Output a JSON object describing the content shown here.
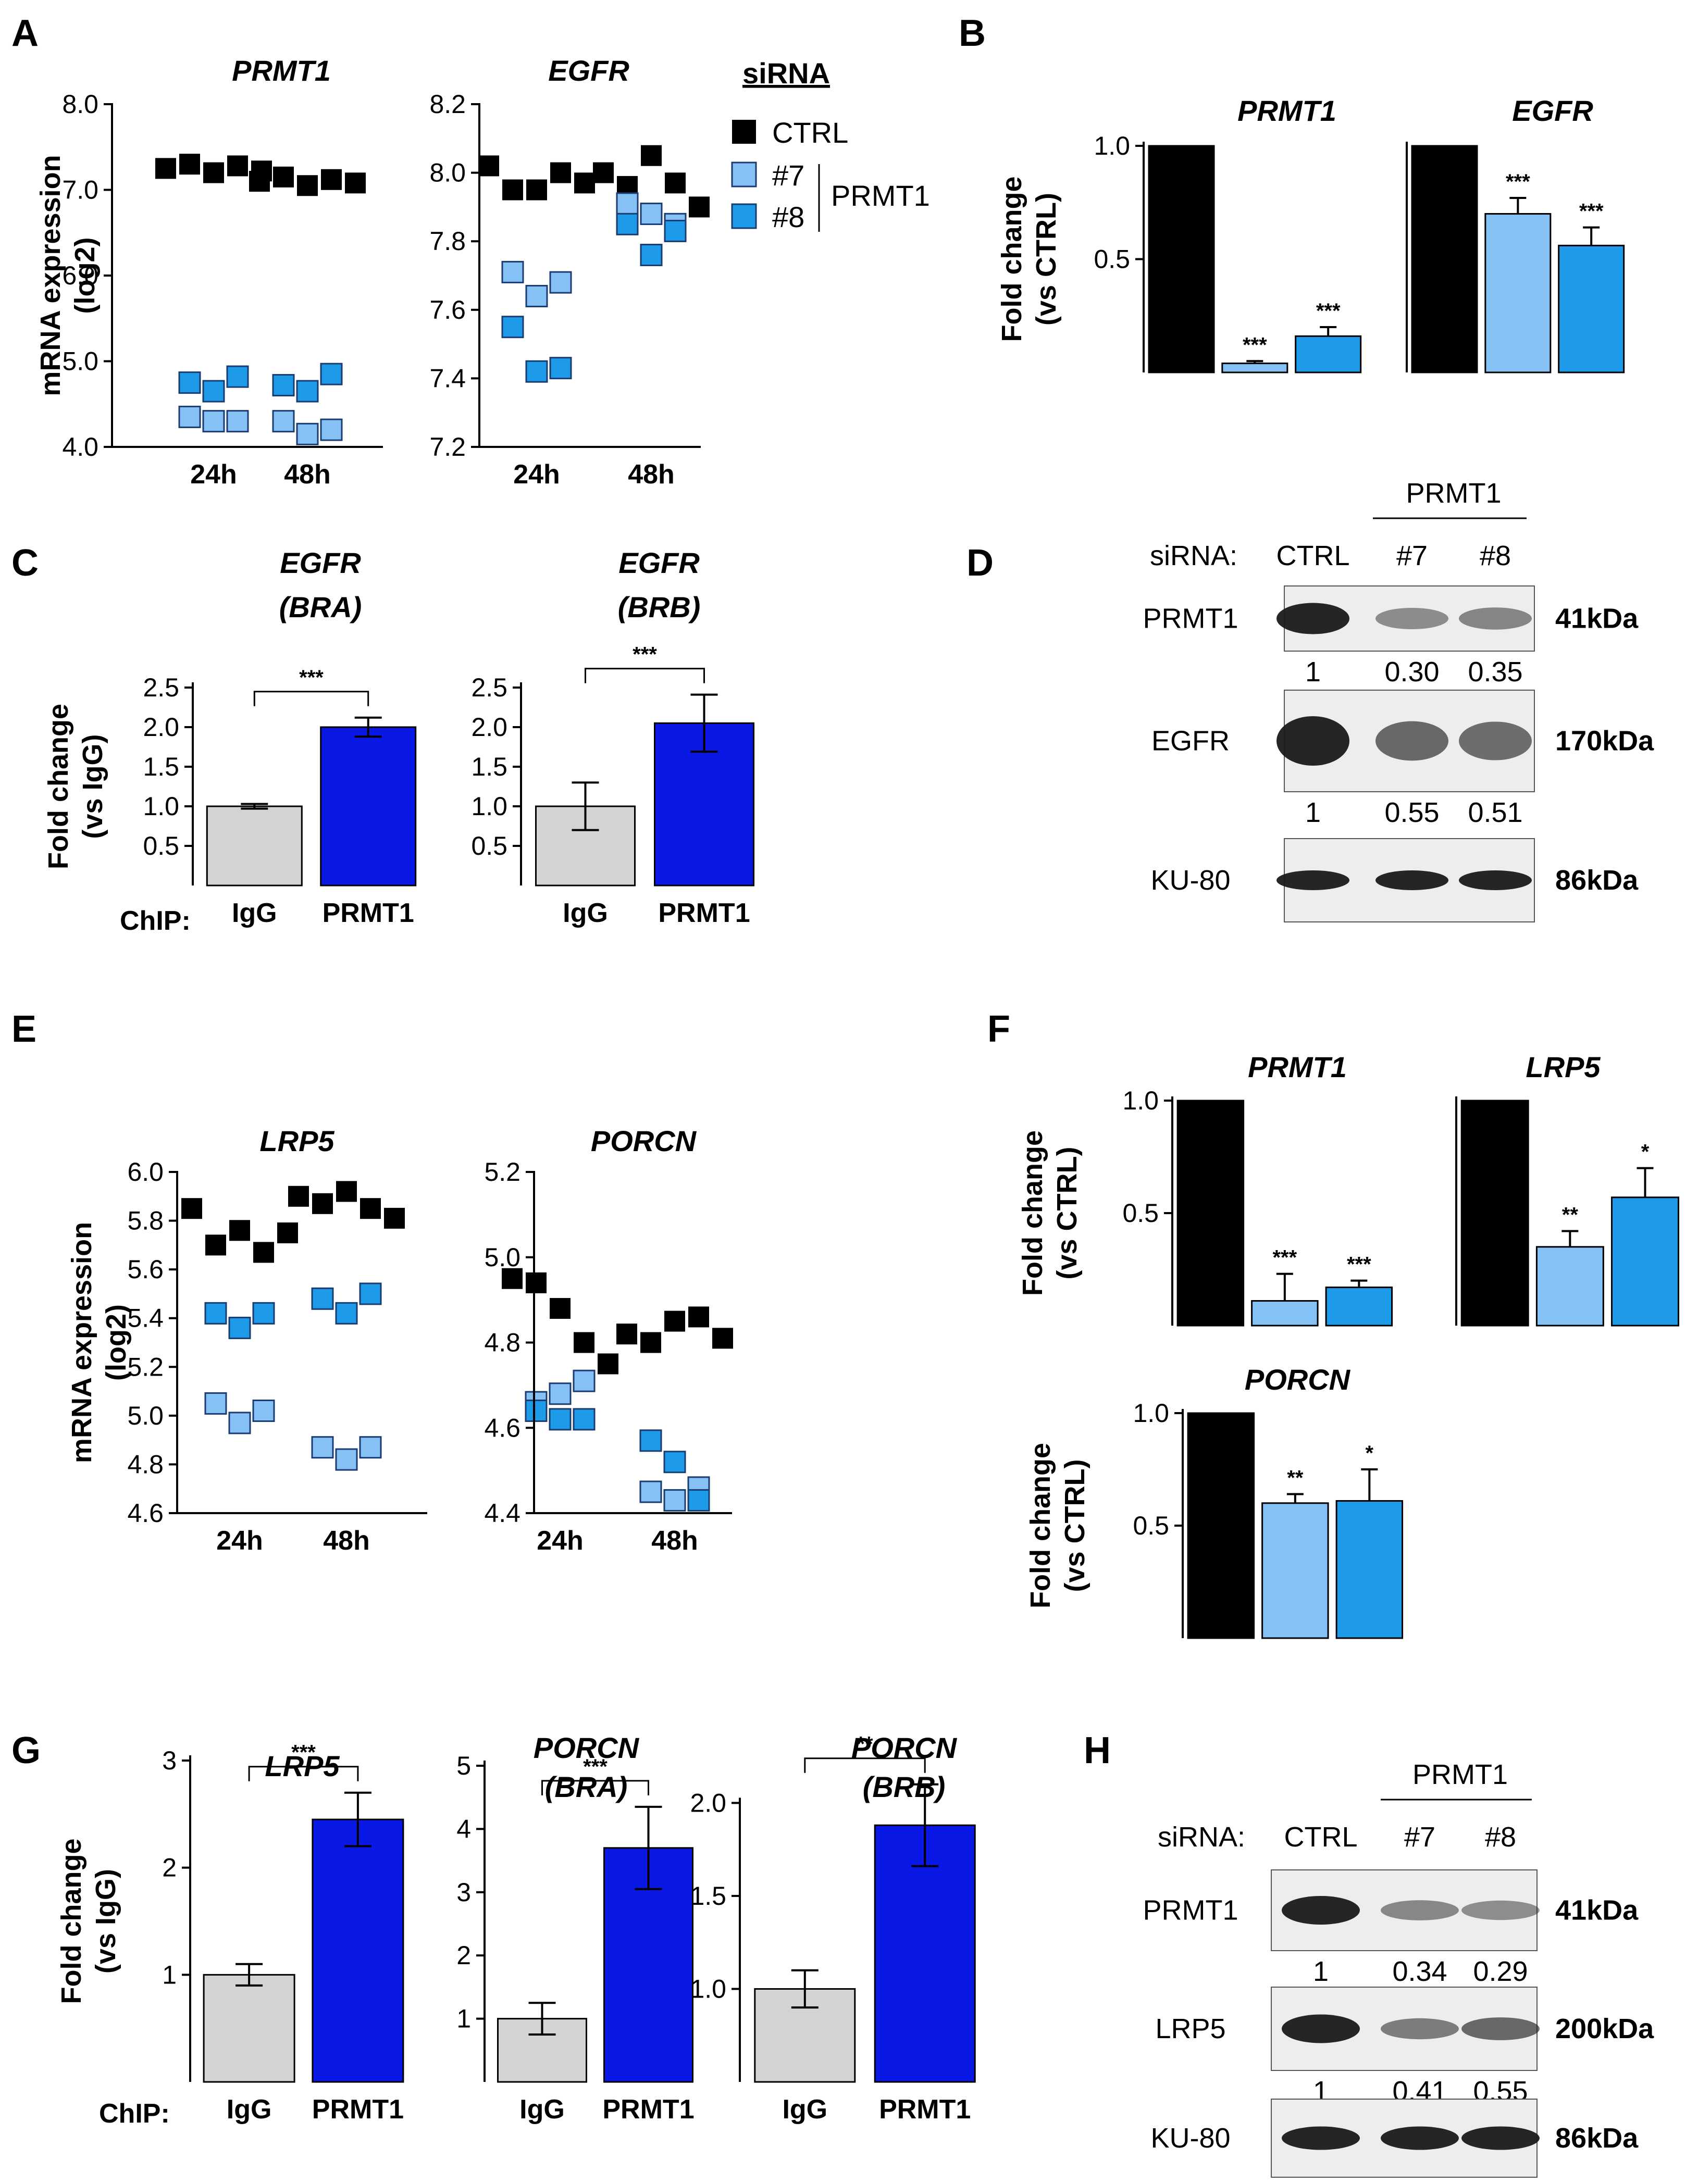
{
  "panels": {
    "A": "A",
    "B": "B",
    "C": "C",
    "D": "D",
    "E": "E",
    "F": "F",
    "G": "G",
    "H": "H"
  },
  "colors": {
    "ctrl": "#000000",
    "si7": "#85c1f5",
    "si8": "#1e9be8",
    "igg": "#d3d3d3",
    "prmt1_chip": "#0a18e6"
  },
  "legend": {
    "title": "siRNA",
    "ctrl": "CTRL",
    "si7": "#7",
    "si8": "#8",
    "group": "PRMT1"
  },
  "chart_data": [
    {
      "id": "A1",
      "type": "scatter",
      "title": "PRMT1",
      "ylabel": "mRNA expression (log2)",
      "ylim": [
        4.0,
        8.0
      ],
      "yticks": [
        {
          "v": 8.0,
          "l": "8.0"
        },
        {
          "v": 7.0,
          "l": "7.0"
        },
        {
          "v": 6.0,
          "l": "6.0"
        },
        {
          "v": 5.0,
          "l": "5.0"
        },
        {
          "v": 4.0,
          "l": "4.0"
        }
      ],
      "categories": [
        "24h",
        "48h"
      ],
      "series": [
        {
          "name": "CTRL",
          "color": "ctrl",
          "points": [
            [
              0,
              7.25
            ],
            [
              0,
              7.3
            ],
            [
              0,
              7.2
            ],
            [
              0,
              7.28
            ],
            [
              0,
              7.22
            ],
            [
              1,
              7.1
            ],
            [
              1,
              7.15
            ],
            [
              1,
              7.05
            ],
            [
              1,
              7.12
            ],
            [
              1,
              7.08
            ]
          ]
        },
        {
          "name": "#7",
          "color": "si7",
          "points": [
            [
              0,
              4.35
            ],
            [
              0,
              4.3
            ],
            [
              0,
              4.3
            ],
            [
              1,
              4.3
            ],
            [
              1,
              4.15
            ],
            [
              1,
              4.2
            ]
          ]
        },
        {
          "name": "#8",
          "color": "si8",
          "points": [
            [
              0,
              4.75
            ],
            [
              0,
              4.65
            ],
            [
              0,
              4.82
            ],
            [
              1,
              4.72
            ],
            [
              1,
              4.65
            ],
            [
              1,
              4.85
            ]
          ]
        }
      ]
    },
    {
      "id": "A2",
      "type": "scatter",
      "title": "EGFR",
      "ylim": [
        7.2,
        8.2
      ],
      "yticks": [
        {
          "v": 8.2,
          "l": "8.2"
        },
        {
          "v": 8.0,
          "l": "8.0"
        },
        {
          "v": 7.8,
          "l": "7.8"
        },
        {
          "v": 7.6,
          "l": "7.6"
        },
        {
          "v": 7.4,
          "l": "7.4"
        },
        {
          "v": 7.2,
          "l": "7.2"
        }
      ],
      "categories": [
        "24h",
        "48h"
      ],
      "series": [
        {
          "name": "CTRL",
          "color": "ctrl",
          "points": [
            [
              0,
              8.02
            ],
            [
              0,
              7.95
            ],
            [
              0,
              7.95
            ],
            [
              0,
              8.0
            ],
            [
              0,
              7.97
            ],
            [
              1,
              8.0
            ],
            [
              1,
              7.96
            ],
            [
              1,
              8.05
            ],
            [
              1,
              7.97
            ],
            [
              1,
              7.9
            ]
          ]
        },
        {
          "name": "#7",
          "color": "si7",
          "points": [
            [
              0,
              7.71
            ],
            [
              0,
              7.64
            ],
            [
              0,
              7.68
            ],
            [
              1,
              7.91
            ],
            [
              1,
              7.88
            ],
            [
              1,
              7.85
            ]
          ]
        },
        {
          "name": "#8",
          "color": "si8",
          "points": [
            [
              0,
              7.55
            ],
            [
              0,
              7.42
            ],
            [
              0,
              7.43
            ],
            [
              1,
              7.85
            ],
            [
              1,
              7.76
            ],
            [
              1,
              7.83
            ]
          ]
        }
      ]
    },
    {
      "id": "B1",
      "type": "bar",
      "title": "PRMT1",
      "ylabel": "Fold change (vs CTRL)",
      "ylim": [
        0,
        1.0
      ],
      "yticks": [
        {
          "v": 1.0,
          "l": "1.0"
        },
        {
          "v": 0.5,
          "l": "0.5"
        }
      ],
      "categories": [
        "CTRL",
        "#7",
        "#8"
      ],
      "values": [
        1.0,
        0.04,
        0.16
      ],
      "errors": [
        0,
        0.01,
        0.04
      ],
      "sig": [
        "",
        "***",
        "***"
      ]
    },
    {
      "id": "B2",
      "type": "bar",
      "title": "EGFR",
      "ylim": [
        0,
        1.0
      ],
      "yticks": [],
      "categories": [
        "CTRL",
        "#7",
        "#8"
      ],
      "values": [
        1.0,
        0.7,
        0.56
      ],
      "errors": [
        0,
        0.07,
        0.08
      ],
      "sig": [
        "",
        "***",
        "***"
      ]
    },
    {
      "id": "C1",
      "type": "bar",
      "title": "EGFR",
      "subtitle": "(BRA)",
      "ylabel": "Fold change (vs IgG)",
      "ylim": [
        0,
        2.5
      ],
      "yticks": [
        {
          "v": 2.5,
          "l": "2.5"
        },
        {
          "v": 2.0,
          "l": "2.0"
        },
        {
          "v": 1.5,
          "l": "1.5"
        },
        {
          "v": 1.0,
          "l": "1.0"
        },
        {
          "v": 0.5,
          "l": "0.5"
        }
      ],
      "categories": [
        "IgG",
        "PRMT1"
      ],
      "values": [
        1.0,
        2.0
      ],
      "errors": [
        0.03,
        0.12
      ],
      "bracket": "***"
    },
    {
      "id": "C2",
      "type": "bar",
      "title": "EGFR",
      "subtitle": "(BRB)",
      "ylim": [
        0,
        2.5
      ],
      "yticks": [
        {
          "v": 2.5,
          "l": "2.5"
        },
        {
          "v": 2.0,
          "l": "2.0"
        },
        {
          "v": 1.5,
          "l": "1.5"
        },
        {
          "v": 1.0,
          "l": "1.0"
        },
        {
          "v": 0.5,
          "l": "0.5"
        }
      ],
      "categories": [
        "IgG",
        "PRMT1"
      ],
      "values": [
        1.0,
        2.05
      ],
      "errors": [
        0.3,
        0.36
      ],
      "bracket": "***"
    },
    {
      "id": "E1",
      "type": "scatter",
      "title": "LRP5",
      "ylabel": "mRNA expression (log2)",
      "ylim": [
        4.6,
        6.0
      ],
      "yticks": [
        {
          "v": 6.0,
          "l": "6.0"
        },
        {
          "v": 5.8,
          "l": "5.8"
        },
        {
          "v": 5.6,
          "l": "5.6"
        },
        {
          "v": 5.4,
          "l": "5.4"
        },
        {
          "v": 5.2,
          "l": "5.2"
        },
        {
          "v": 5.0,
          "l": "5.0"
        },
        {
          "v": 4.8,
          "l": "4.8"
        },
        {
          "v": 4.6,
          "l": "4.6"
        }
      ],
      "categories": [
        "24h",
        "48h"
      ],
      "series": [
        {
          "name": "CTRL",
          "color": "ctrl",
          "points": [
            [
              0,
              5.85
            ],
            [
              0,
              5.7
            ],
            [
              0,
              5.76
            ],
            [
              0,
              5.67
            ],
            [
              0,
              5.75
            ],
            [
              1,
              5.9
            ],
            [
              1,
              5.87
            ],
            [
              1,
              5.92
            ],
            [
              1,
              5.85
            ],
            [
              1,
              5.81
            ]
          ]
        },
        {
          "name": "#7",
          "color": "si7",
          "points": [
            [
              0,
              5.05
            ],
            [
              0,
              4.97
            ],
            [
              0,
              5.02
            ],
            [
              1,
              4.87
            ],
            [
              1,
              4.82
            ],
            [
              1,
              4.87
            ]
          ]
        },
        {
          "name": "#8",
          "color": "si8",
          "points": [
            [
              0,
              5.42
            ],
            [
              0,
              5.36
            ],
            [
              0,
              5.42
            ],
            [
              1,
              5.48
            ],
            [
              1,
              5.42
            ],
            [
              1,
              5.5
            ]
          ]
        }
      ]
    },
    {
      "id": "E2",
      "type": "scatter",
      "title": "PORCN",
      "ylim": [
        4.4,
        5.2
      ],
      "yticks": [
        {
          "v": 5.2,
          "l": "5.2"
        },
        {
          "v": 5.0,
          "l": "5.0"
        },
        {
          "v": 4.8,
          "l": "4.8"
        },
        {
          "v": 4.6,
          "l": "4.6"
        },
        {
          "v": 4.4,
          "l": "4.4"
        }
      ],
      "categories": [
        "24h",
        "48h"
      ],
      "series": [
        {
          "name": "CTRL",
          "color": "ctrl",
          "points": [
            [
              0,
              4.95
            ],
            [
              0,
              4.94
            ],
            [
              0,
              4.88
            ],
            [
              0,
              4.8
            ],
            [
              0,
              4.75
            ],
            [
              1,
              4.82
            ],
            [
              1,
              4.8
            ],
            [
              1,
              4.85
            ],
            [
              1,
              4.86
            ],
            [
              1,
              4.81
            ]
          ]
        },
        {
          "name": "#7",
          "color": "si7",
          "points": [
            [
              0,
              4.66
            ],
            [
              0,
              4.68
            ],
            [
              0,
              4.71
            ],
            [
              1,
              4.45
            ],
            [
              1,
              4.43
            ],
            [
              1,
              4.46
            ]
          ]
        },
        {
          "name": "#8",
          "color": "si8",
          "points": [
            [
              0,
              4.64
            ],
            [
              0,
              4.62
            ],
            [
              0,
              4.62
            ],
            [
              1,
              4.57
            ],
            [
              1,
              4.52
            ],
            [
              1,
              4.43
            ]
          ]
        }
      ]
    },
    {
      "id": "F1",
      "type": "bar",
      "title": "PRMT1",
      "ylabel": "Fold change (vs CTRL)",
      "ylim": [
        0,
        1.0
      ],
      "yticks": [
        {
          "v": 1.0,
          "l": "1.0"
        },
        {
          "v": 0.5,
          "l": "0.5"
        }
      ],
      "categories": [
        "CTRL",
        "#7",
        "#8"
      ],
      "values": [
        1.0,
        0.11,
        0.17
      ],
      "errors": [
        0,
        0.12,
        0.03
      ],
      "sig": [
        "",
        "***",
        "***"
      ]
    },
    {
      "id": "F2",
      "type": "bar",
      "title": "LRP5",
      "ylim": [
        0,
        1.0
      ],
      "yticks": [],
      "categories": [
        "CTRL",
        "#7",
        "#8"
      ],
      "values": [
        1.0,
        0.35,
        0.57
      ],
      "errors": [
        0,
        0.07,
        0.13
      ],
      "sig": [
        "",
        "**",
        "*"
      ]
    },
    {
      "id": "F3",
      "type": "bar",
      "title": "PORCN",
      "ylabel": "Fold change (vs CTRL)",
      "ylim": [
        0,
        1.0
      ],
      "yticks": [
        {
          "v": 1.0,
          "l": "1.0"
        },
        {
          "v": 0.5,
          "l": "0.5"
        }
      ],
      "categories": [
        "CTRL",
        "#7",
        "#8"
      ],
      "values": [
        1.0,
        0.6,
        0.61
      ],
      "errors": [
        0,
        0.04,
        0.14
      ],
      "sig": [
        "",
        "**",
        "*"
      ]
    },
    {
      "id": "G1",
      "type": "bar",
      "title": "LRP5",
      "ylabel": "Fold change (vs IgG)",
      "ylim": [
        0,
        3
      ],
      "yticks": [
        {
          "v": 3,
          "l": "3"
        },
        {
          "v": 2,
          "l": "2"
        },
        {
          "v": 1,
          "l": "1"
        }
      ],
      "categories": [
        "IgG",
        "PRMT1"
      ],
      "values": [
        1.0,
        2.45
      ],
      "errors": [
        0.1,
        0.25
      ],
      "bracket": "***"
    },
    {
      "id": "G2",
      "type": "bar",
      "title": "PORCN",
      "subtitle": "(BRA)",
      "ylim": [
        0,
        5
      ],
      "yticks": [
        {
          "v": 5,
          "l": "5"
        },
        {
          "v": 4,
          "l": "4"
        },
        {
          "v": 3,
          "l": "3"
        },
        {
          "v": 2,
          "l": "2"
        },
        {
          "v": 1,
          "l": "1"
        }
      ],
      "categories": [
        "IgG",
        "PRMT1"
      ],
      "values": [
        1.0,
        3.7
      ],
      "errors": [
        0.25,
        0.65
      ],
      "bracket": "***"
    },
    {
      "id": "G3",
      "type": "bar",
      "title": "PORCN",
      "subtitle": "(BRB)",
      "ylim": [
        0.5,
        2.2
      ],
      "yticks": [
        {
          "v": 2.0,
          "l": "2.0"
        },
        {
          "v": 1.5,
          "l": "1.5"
        },
        {
          "v": 1.0,
          "l": "1.0"
        }
      ],
      "categories": [
        "IgG",
        "PRMT1"
      ],
      "values": [
        1.0,
        1.88
      ],
      "errors": [
        0.1,
        0.22
      ],
      "bracket": "**"
    }
  ],
  "chip_label": "ChIP:",
  "blots": [
    {
      "id": "D",
      "header": "PRMT1",
      "siRNA_label": "siRNA:",
      "lanes": [
        "CTRL",
        "#7",
        "#8"
      ],
      "rows": [
        {
          "protein": "PRMT1",
          "size": "41kDa",
          "intensity": [
            1.0,
            0.3,
            0.35
          ],
          "quant": [
            "1",
            "0.30",
            "0.35"
          ]
        },
        {
          "protein": "EGFR",
          "size": "170kDa",
          "intensity": [
            1.0,
            0.55,
            0.51
          ],
          "quant": [
            "1",
            "0.55",
            "0.51"
          ]
        },
        {
          "protein": "KU-80",
          "size": "86kDa",
          "intensity": [
            1.0,
            1.0,
            1.0
          ],
          "quant": []
        }
      ]
    },
    {
      "id": "H",
      "header": "PRMT1",
      "siRNA_label": "siRNA:",
      "lanes": [
        "CTRL",
        "#7",
        "#8"
      ],
      "rows": [
        {
          "protein": "PRMT1",
          "size": "41kDa",
          "intensity": [
            1.0,
            0.34,
            0.29
          ],
          "quant": [
            "1",
            "0.34",
            "0.29"
          ]
        },
        {
          "protein": "LRP5",
          "size": "200kDa",
          "intensity": [
            1.0,
            0.41,
            0.55
          ],
          "quant": [
            "1",
            "0.41",
            "0.55"
          ]
        },
        {
          "protein": "KU-80",
          "size": "86kDa",
          "intensity": [
            1.0,
            1.0,
            1.0
          ],
          "quant": []
        }
      ]
    }
  ]
}
